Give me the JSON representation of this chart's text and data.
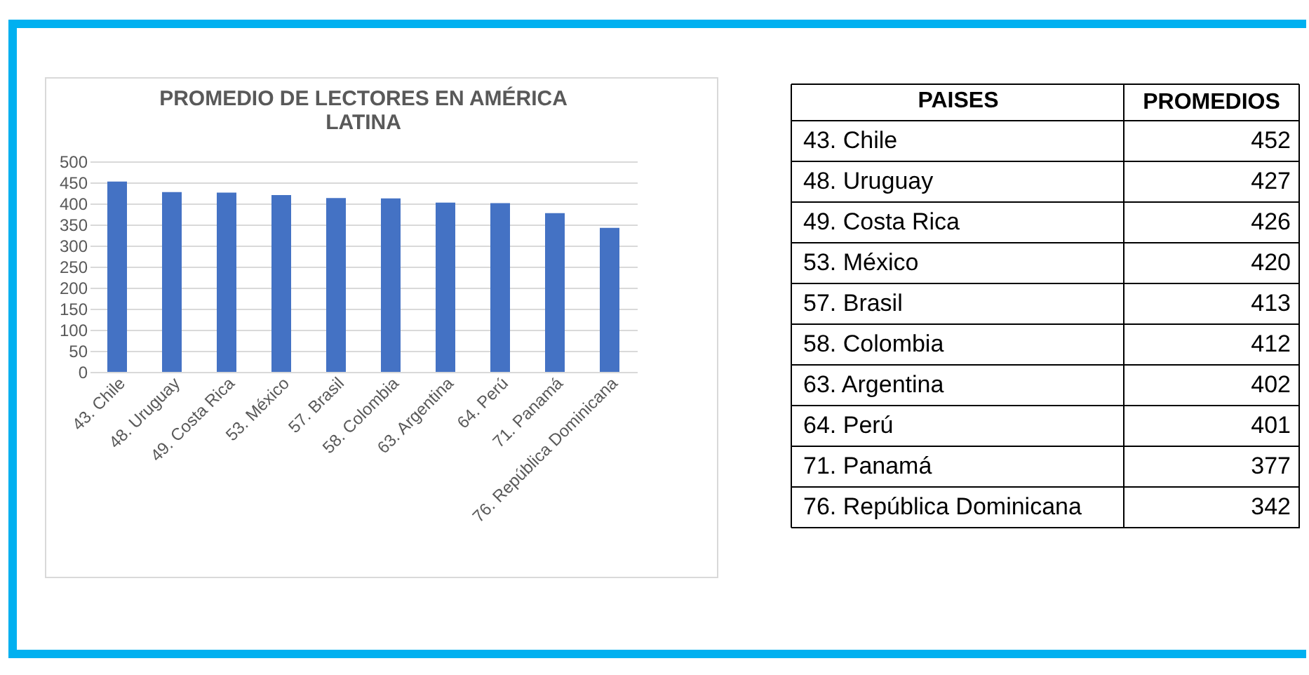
{
  "chart_data": [
    {
      "type": "bar",
      "title": "PROMEDIO DE LECTORES  EN AMÉRICA LATINA",
      "categories": [
        "43. Chile",
        "48. Uruguay",
        "49. Costa Rica",
        "53. México",
        "57. Brasil",
        "58. Colombia",
        "63. Argentina",
        "64. Perú",
        "71. Panamá",
        "76. República Dominicana"
      ],
      "values": [
        452,
        427,
        426,
        420,
        413,
        412,
        402,
        401,
        377,
        342
      ],
      "color": "#4472c4",
      "ylim": [
        0,
        500
      ],
      "yticks": [
        0,
        50,
        100,
        150,
        200,
        250,
        300,
        350,
        400,
        450,
        500
      ],
      "grid": "y"
    },
    {
      "type": "heatmap",
      "ylabel": "PAISES",
      "categories": [
        "PROMEDIOS"
      ],
      "y_categories": [
        "43. Chile",
        "48. Uruguay",
        "49. Costa Rica",
        "53. México",
        "57. Brasil",
        "58. Colombia",
        "63. Argentina",
        "64. Perú",
        "71. Panamá",
        "76. República Dominicana"
      ],
      "cells": [
        [
          452
        ],
        [
          427
        ],
        [
          426
        ],
        [
          420
        ],
        [
          413
        ],
        [
          412
        ],
        [
          402
        ],
        [
          401
        ],
        [
          377
        ],
        [
          342
        ]
      ],
      "data_labels": true
    }
  ]
}
